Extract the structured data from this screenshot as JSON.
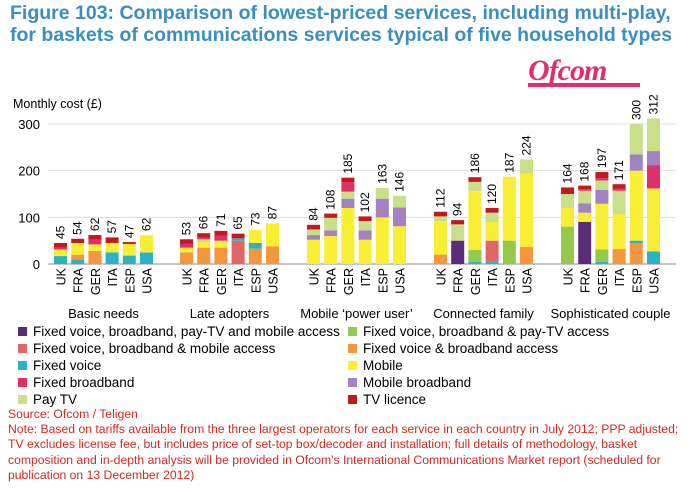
{
  "figure": {
    "title_line1": "Figure 103: Comparison of lowest-priced services, including multi-play,",
    "title_line2": "for baskets of communications services typical of five household types",
    "logo_text": "Ofcom"
  },
  "colors": {
    "title": "#3a8fc1",
    "logo": "#e0306c",
    "note": "#d02a25",
    "fixed_voice_bb_paytv_mobile": "#5b2d79",
    "fixed_voice_bb_mobile": "#e06667",
    "fixed_voice": "#2bb3c4",
    "fixed_broadband": "#e0306c",
    "pay_tv": "#c9df8a",
    "fixed_voice_bb_paytv": "#94c94b",
    "fixed_voice_bb": "#f4973f",
    "mobile": "#f8ee33",
    "mobile_broadband": "#a382c2",
    "tv_licence": "#c01a1f"
  },
  "chart_data": {
    "type": "bar",
    "stacked": true,
    "ylabel": "Monthly cost (£)",
    "ylim": [
      0,
      300
    ],
    "yticks": [
      0,
      100,
      200,
      300
    ],
    "groups": [
      {
        "name": "Basic needs",
        "countries": [
          "UK",
          "FRA",
          "GER",
          "ITA",
          "ESP",
          "USA"
        ],
        "totals": [
          45,
          54,
          62,
          57,
          47,
          62
        ]
      },
      {
        "name": "Late adopters",
        "countries": [
          "UK",
          "FRA",
          "GER",
          "ITA",
          "ESP",
          "USA"
        ],
        "totals": [
          53,
          66,
          71,
          65,
          73,
          87
        ]
      },
      {
        "name": "Mobile ‘power user’",
        "countries": [
          "UK",
          "FRA",
          "GER",
          "ITA",
          "ESP",
          "USA"
        ],
        "totals": [
          84,
          108,
          185,
          102,
          163,
          146
        ]
      },
      {
        "name": "Connected family",
        "countries": [
          "UK",
          "FRA",
          "GER",
          "ITA",
          "ESP",
          "USA"
        ],
        "totals": [
          112,
          94,
          186,
          120,
          187,
          224
        ]
      },
      {
        "name": "Sophisticated couple",
        "countries": [
          "UK",
          "FRA",
          "GER",
          "ITA",
          "ESP",
          "USA"
        ],
        "totals": [
          164,
          168,
          197,
          171,
          300,
          312
        ]
      }
    ],
    "series": [
      {
        "key": "fixed_voice_bb_paytv_mobile",
        "name": "Fixed voice, broadband, pay-TV and mobile access"
      },
      {
        "key": "fixed_voice_bb_paytv",
        "name": "Fixed voice, broadband & pay-TV access"
      },
      {
        "key": "fixed_voice_bb_mobile",
        "name": "Fixed voice, broadband & mobile access"
      },
      {
        "key": "fixed_voice_bb",
        "name": "Fixed voice & broadband access"
      },
      {
        "key": "fixed_voice",
        "name": "Fixed voice"
      },
      {
        "key": "mobile",
        "name": "Mobile"
      },
      {
        "key": "fixed_broadband",
        "name": "Fixed broadband"
      },
      {
        "key": "mobile_broadband",
        "name": "Mobile broadband"
      },
      {
        "key": "pay_tv",
        "name": "Pay TV"
      },
      {
        "key": "tv_licence",
        "name": "TV licence"
      }
    ],
    "bars": [
      [
        [
          [
            "fixed_voice",
            17
          ],
          [
            "mobile",
            14
          ],
          [
            "fixed_broadband",
            4
          ],
          [
            "tv_licence",
            10
          ]
        ],
        [
          [
            "fixed_voice",
            10
          ],
          [
            "fixed_voice_bb",
            10
          ],
          [
            "mobile",
            25
          ],
          [
            "tv_licence",
            9
          ]
        ],
        [
          [
            "fixed_voice_bb",
            28
          ],
          [
            "mobile",
            14
          ],
          [
            "fixed_broadband",
            10
          ],
          [
            "tv_licence",
            10
          ]
        ],
        [
          [
            "fixed_voice",
            25
          ],
          [
            "mobile",
            20
          ],
          [
            "tv_licence",
            12
          ]
        ],
        [
          [
            "fixed_voice",
            18
          ],
          [
            "mobile",
            25
          ],
          [
            "tv_licence",
            4
          ]
        ],
        [
          [
            "fixed_voice",
            25
          ],
          [
            "mobile",
            37
          ]
        ]
      ],
      [
        [
          [
            "fixed_voice_bb",
            25
          ],
          [
            "mobile",
            10
          ],
          [
            "fixed_broadband",
            8
          ],
          [
            "tv_licence",
            10
          ]
        ],
        [
          [
            "fixed_voice_bb",
            35
          ],
          [
            "mobile",
            12
          ],
          [
            "pay_tv",
            6
          ],
          [
            "fixed_broadband",
            4
          ],
          [
            "tv_licence",
            9
          ]
        ],
        [
          [
            "fixed_voice_bb",
            35
          ],
          [
            "mobile",
            15
          ],
          [
            "fixed_broadband",
            11
          ],
          [
            "tv_licence",
            10
          ]
        ],
        [
          [
            "fixed_voice_bb_mobile",
            50
          ],
          [
            "fixed_voice",
            5
          ],
          [
            "tv_licence",
            10
          ]
        ],
        [
          [
            "fixed_voice_bb",
            33
          ],
          [
            "fixed_voice",
            12
          ],
          [
            "mobile",
            28
          ]
        ],
        [
          [
            "fixed_voice_bb",
            38
          ],
          [
            "mobile",
            49
          ]
        ]
      ],
      [
        [
          [
            "mobile",
            52
          ],
          [
            "mobile_broadband",
            10
          ],
          [
            "pay_tv",
            12
          ],
          [
            "tv_licence",
            10
          ]
        ],
        [
          [
            "mobile",
            60
          ],
          [
            "mobile_broadband",
            12
          ],
          [
            "pay_tv",
            27
          ],
          [
            "tv_licence",
            9
          ]
        ],
        [
          [
            "mobile",
            120
          ],
          [
            "mobile_broadband",
            20
          ],
          [
            "pay_tv",
            15
          ],
          [
            "fixed_broadband",
            20
          ],
          [
            "tv_licence",
            10
          ]
        ],
        [
          [
            "mobile",
            52
          ],
          [
            "mobile_broadband",
            20
          ],
          [
            "pay_tv",
            20
          ],
          [
            "tv_licence",
            10
          ]
        ],
        [
          [
            "mobile",
            100
          ],
          [
            "mobile_broadband",
            40
          ],
          [
            "pay_tv",
            23
          ]
        ],
        [
          [
            "mobile",
            81
          ],
          [
            "mobile_broadband",
            40
          ],
          [
            "pay_tv",
            25
          ]
        ]
      ],
      [
        [
          [
            "fixed_voice_bb",
            20
          ],
          [
            "mobile",
            72
          ],
          [
            "pay_tv",
            10
          ],
          [
            "tv_licence",
            10
          ]
        ],
        [
          [
            "fixed_voice_bb_paytv_mobile",
            50
          ],
          [
            "pay_tv",
            35
          ],
          [
            "tv_licence",
            9
          ]
        ],
        [
          [
            "fixed_voice",
            5
          ],
          [
            "fixed_voice_bb_paytv",
            25
          ],
          [
            "mobile",
            126
          ],
          [
            "pay_tv",
            20
          ],
          [
            "tv_licence",
            10
          ]
        ],
        [
          [
            "fixed_voice",
            5
          ],
          [
            "fixed_voice_bb_mobile",
            45
          ],
          [
            "mobile",
            40
          ],
          [
            "pay_tv",
            20
          ],
          [
            "tv_licence",
            10
          ]
        ],
        [
          [
            "fixed_voice_bb_paytv",
            50
          ],
          [
            "mobile",
            137
          ]
        ],
        [
          [
            "fixed_voice_bb",
            37
          ],
          [
            "mobile",
            157
          ],
          [
            "pay_tv",
            30
          ]
        ]
      ],
      [
        [
          [
            "fixed_voice_bb_paytv",
            80
          ],
          [
            "mobile",
            40
          ],
          [
            "pay_tv",
            30
          ],
          [
            "tv_licence",
            14
          ]
        ],
        [
          [
            "fixed_voice_bb_paytv_mobile",
            90
          ],
          [
            "mobile",
            20
          ],
          [
            "mobile_broadband",
            20
          ],
          [
            "pay_tv",
            27
          ],
          [
            "fixed_broadband",
            3
          ],
          [
            "tv_licence",
            8
          ]
        ],
        [
          [
            "fixed_voice",
            5
          ],
          [
            "fixed_voice_bb_paytv",
            26
          ],
          [
            "mobile",
            98
          ],
          [
            "mobile_broadband",
            30
          ],
          [
            "pay_tv",
            20
          ],
          [
            "fixed_broadband",
            5
          ],
          [
            "tv_licence",
            13
          ]
        ],
        [
          [
            "fixed_voice_bb",
            32
          ],
          [
            "mobile",
            75
          ],
          [
            "pay_tv",
            50
          ],
          [
            "fixed_broadband",
            4
          ],
          [
            "tv_licence",
            10
          ]
        ],
        [
          [
            "fixed_voice_bb",
            45
          ],
          [
            "fixed_voice",
            5
          ],
          [
            "mobile",
            150
          ],
          [
            "mobile_broadband",
            35
          ],
          [
            "pay_tv",
            65
          ]
        ],
        [
          [
            "fixed_voice",
            27
          ],
          [
            "mobile",
            135
          ],
          [
            "fixed_broadband",
            50
          ],
          [
            "mobile_broadband",
            30
          ],
          [
            "pay_tv",
            70
          ]
        ]
      ]
    ]
  },
  "legend": {
    "items": [
      {
        "key": "fixed_voice_bb_paytv_mobile",
        "label": "Fixed voice, broadband, pay-TV and mobile access"
      },
      {
        "key": "fixed_voice_bb_paytv",
        "label": "Fixed voice, broadband & pay-TV access"
      },
      {
        "key": "fixed_voice_bb_mobile",
        "label": "Fixed voice, broadband & mobile access"
      },
      {
        "key": "fixed_voice_bb",
        "label": "Fixed voice & broadband access"
      },
      {
        "key": "fixed_voice",
        "label": "Fixed voice"
      },
      {
        "key": "mobile",
        "label": "Mobile"
      },
      {
        "key": "fixed_broadband",
        "label": "Fixed broadband"
      },
      {
        "key": "mobile_broadband",
        "label": "Mobile broadband"
      },
      {
        "key": "pay_tv",
        "label": "Pay TV"
      },
      {
        "key": "tv_licence",
        "label": "TV licence"
      }
    ]
  },
  "notes": {
    "source": "Source: Ofcom / Teligen",
    "note": "Note: Based on tariffs available from the three largest operators for each service in each country in July 2012; PPP adjusted; TV excludes license fee, but includes price of set-top box/decoder and installation; full details of methodology, basket composition and in-depth analysis will be provided in Ofcom's International Communications Market report (scheduled for publication on 13 December 2012)"
  }
}
